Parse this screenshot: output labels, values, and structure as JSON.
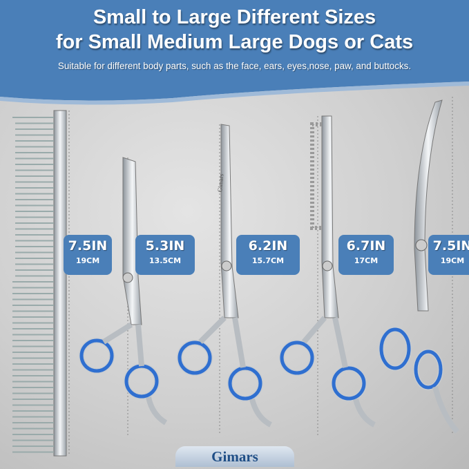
{
  "header": {
    "title_line1": "Small to Large Different Sizes",
    "title_line2": "for Small Medium Large Dogs or Cats",
    "subtitle": "Suitable for different body parts, such as the face, ears, eyes,nose, paw, and buttocks."
  },
  "products": [
    {
      "name": "comb",
      "length_in": "7.5IN",
      "length_cm": "19CM"
    },
    {
      "name": "straight-scissors",
      "length_in": "5.3IN",
      "length_cm": "13.5CM"
    },
    {
      "name": "curved-scissors",
      "length_in": "6.2IN",
      "length_cm": "15.7CM"
    },
    {
      "name": "thinning-scissors",
      "length_in": "6.7IN",
      "length_cm": "17CM"
    },
    {
      "name": "chunker-scissors",
      "length_in": "7.5IN",
      "length_cm": "19CM"
    }
  ],
  "engraving": "Gimars",
  "brand": "Gimars",
  "colors": {
    "header_blue": "#4a7fb8",
    "ring_blue": "#2f6fd0",
    "steel": "#c9cdd2"
  }
}
